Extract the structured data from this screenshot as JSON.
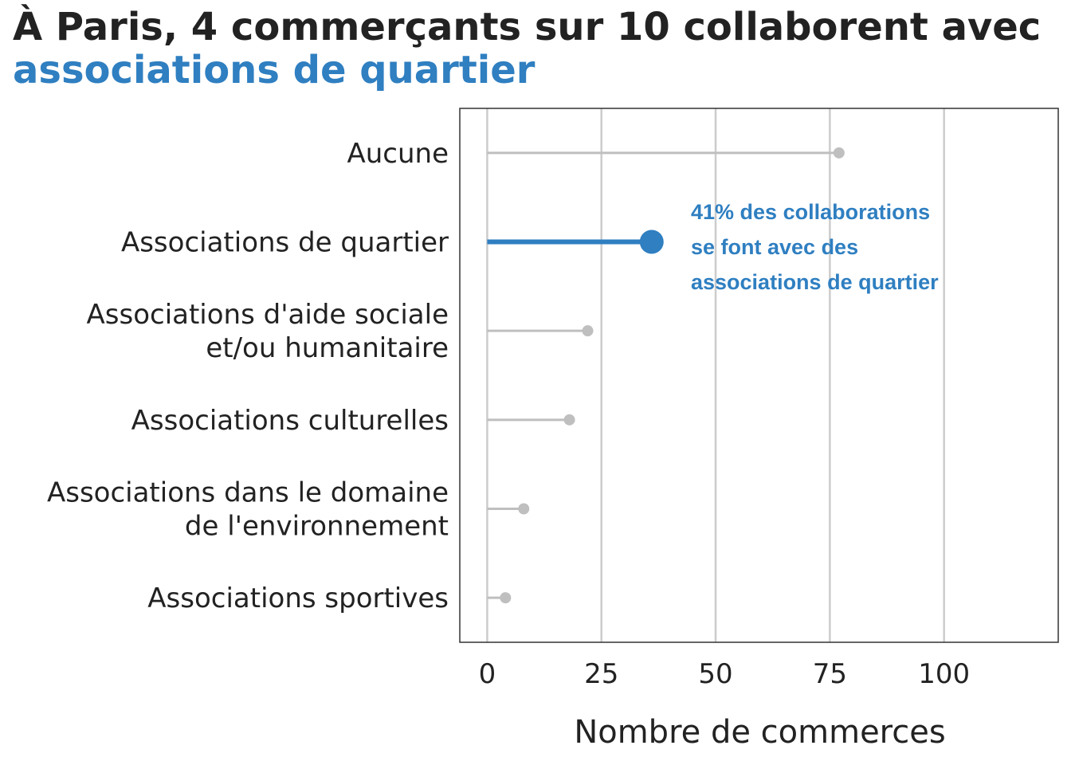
{
  "colors": {
    "highlight": "#2f7fc1",
    "muted": "#bfbfbf",
    "grid": "#cccccc",
    "text": "#222222",
    "frame": "#333333"
  },
  "chart_data": {
    "type": "lollipop",
    "title": "À Paris, 4 commerçants sur 10 collaborent avec",
    "subtitle": "associations de quartier",
    "xlabel": "Nombre de commerces",
    "ylabel": "",
    "xlim": [
      -6,
      125
    ],
    "xticks": [
      0,
      25,
      50,
      75,
      100
    ],
    "grid": "vertical",
    "categories": [
      [
        "Aucune"
      ],
      [
        "Associations de quartier"
      ],
      [
        "Associations d'aide sociale",
        "et/ou humanitaire"
      ],
      [
        "Associations culturelles"
      ],
      [
        "Associations dans le domaine",
        "de l'environnement"
      ],
      [
        "Associations sportives"
      ]
    ],
    "values": [
      77,
      36,
      22,
      18,
      8,
      4
    ],
    "highlight_index": 1,
    "annotation": {
      "lines": [
        "41% des collaborations",
        "se font avec des",
        "associations de quartier"
      ]
    }
  }
}
